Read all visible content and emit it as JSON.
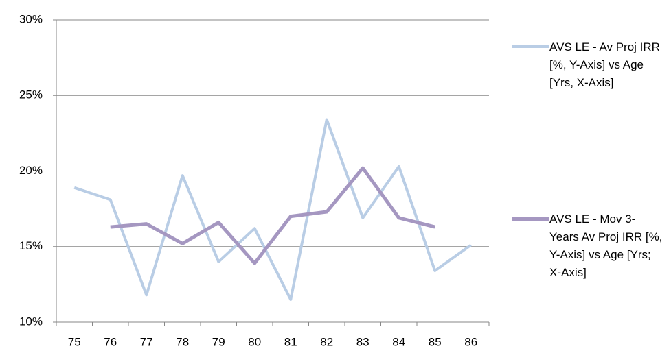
{
  "chart_data": {
    "type": "line",
    "categories": [
      "75",
      "76",
      "77",
      "78",
      "79",
      "80",
      "81",
      "82",
      "83",
      "84",
      "85",
      "86"
    ],
    "series": [
      {
        "name": "AVS LE - Av Proj IRR [%, Y-Axis] vs Age [Yrs, X-Axis]",
        "color": "#b9cde5",
        "values": [
          18.9,
          18.1,
          11.8,
          19.7,
          14.0,
          16.2,
          11.5,
          23.4,
          16.9,
          20.3,
          13.4,
          15.1
        ]
      },
      {
        "name": "AVS LE - Mov 3-Years Av Proj IRR [%, Y-Axis] vs Age [Yrs; X-Axis]",
        "color": "#a597c1",
        "values": [
          null,
          16.3,
          16.5,
          15.2,
          16.6,
          13.9,
          17.0,
          17.3,
          20.2,
          16.9,
          16.3,
          null
        ]
      }
    ],
    "ylim": [
      10,
      30
    ],
    "yticks": [
      {
        "value": 10,
        "label": "10%"
      },
      {
        "value": 15,
        "label": "15%"
      },
      {
        "value": 20,
        "label": "20%"
      },
      {
        "value": 25,
        "label": "25%"
      },
      {
        "value": 30,
        "label": "30%"
      }
    ],
    "grid": true,
    "legend": "right"
  }
}
